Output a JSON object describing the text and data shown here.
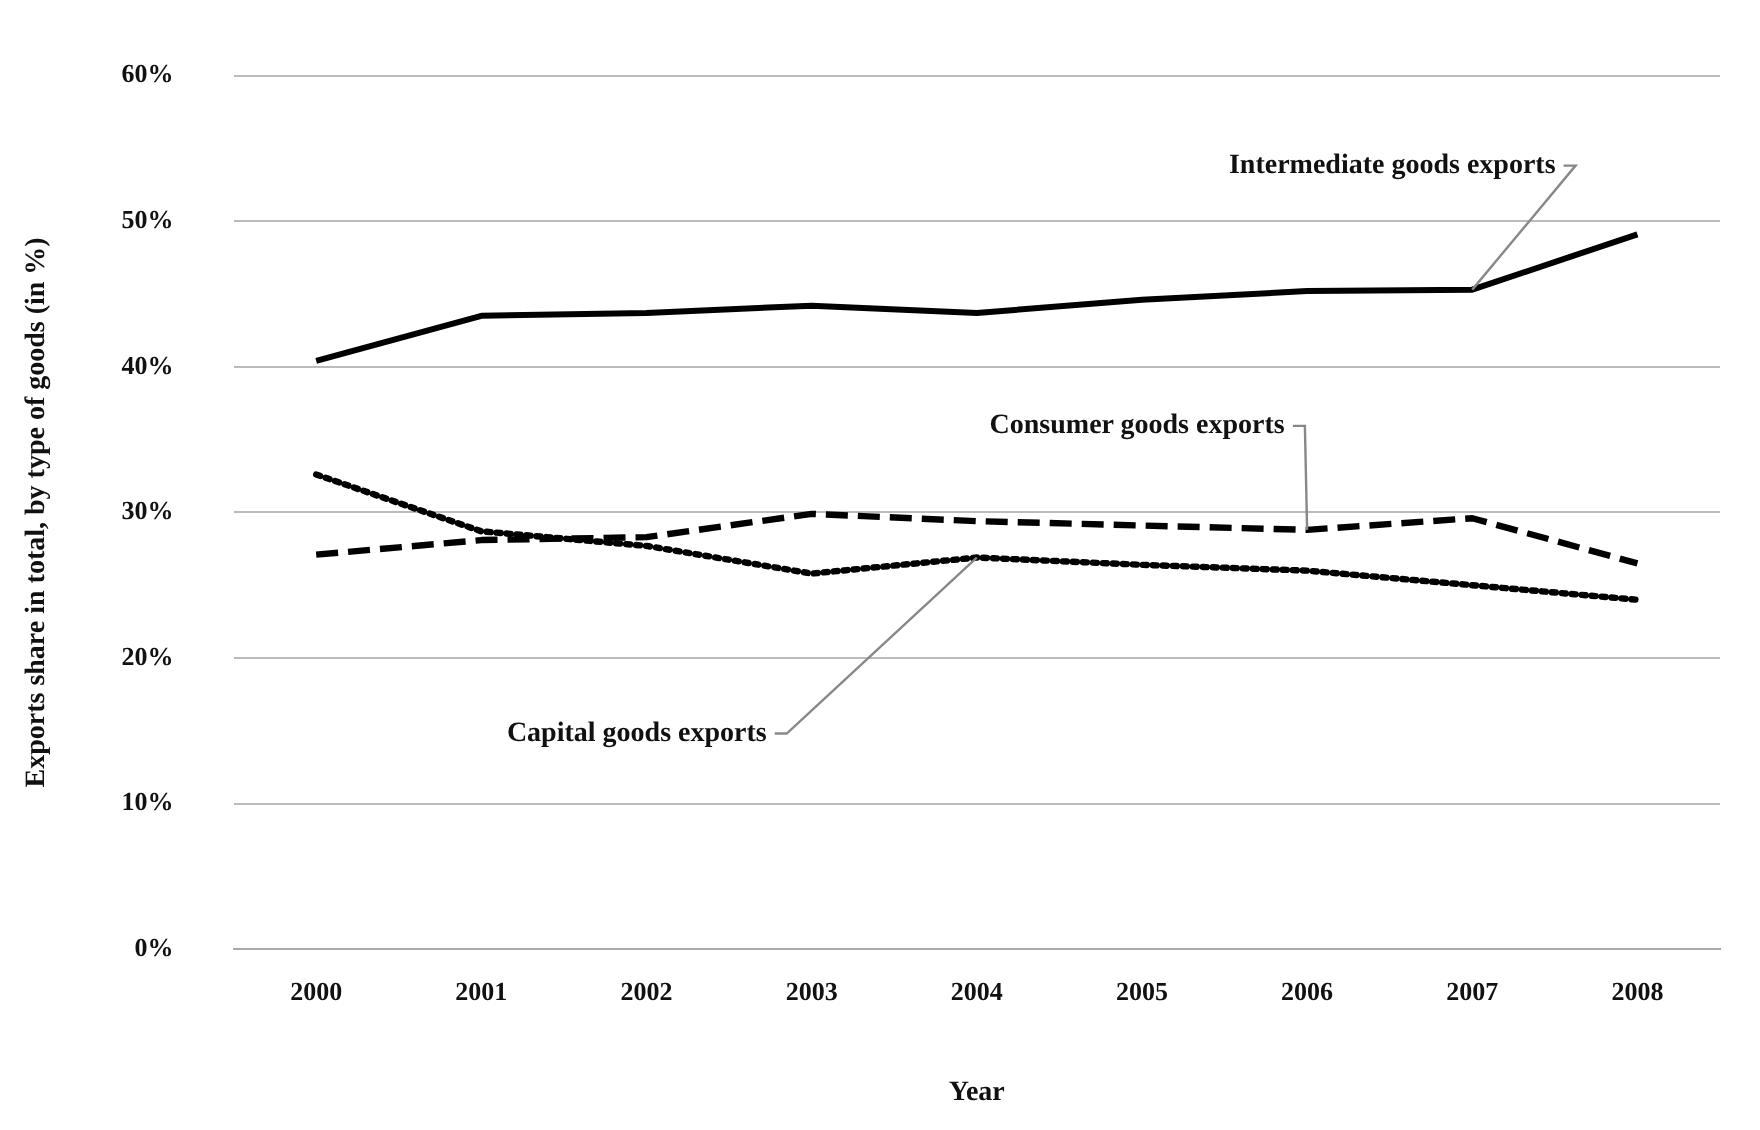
{
  "chart_data": {
    "type": "line",
    "xlabel": "Year",
    "ylabel": "Exports share in total, by type of goods (in %)",
    "categories": [
      "2000",
      "2001",
      "2002",
      "2003",
      "2004",
      "2005",
      "2006",
      "2007",
      "2008"
    ],
    "series": [
      {
        "color": "#000000",
        "line_style": "solid",
        "values": [
          40.4,
          43.5,
          43.7,
          44.2,
          43.7,
          44.6,
          45.2,
          45.3,
          49.1
        ]
      },
      {
        "color": "#000000",
        "line_style": "dashed",
        "values": [
          27.1,
          28.1,
          28.3,
          29.9,
          29.4,
          29.1,
          28.8,
          29.6,
          26.5
        ]
      },
      {
        "color": "#000000",
        "line_style": "dotted",
        "values": [
          32.6,
          28.7,
          27.7,
          25.8,
          26.9,
          26.4,
          26.0,
          25.0,
          24.0
        ]
      }
    ],
    "ylim": [
      0,
      60
    ],
    "yticks": [
      {
        "value": 0,
        "label": "0%"
      },
      {
        "value": 10,
        "label": "10%"
      },
      {
        "value": 20,
        "label": "20%"
      },
      {
        "value": 30,
        "label": "30%"
      },
      {
        "value": 40,
        "label": "40%"
      },
      {
        "value": 50,
        "label": "50%"
      },
      {
        "value": 60,
        "label": "60%"
      }
    ],
    "grid": "y",
    "legend": false,
    "marker": "none",
    "annotations": [
      {
        "text": "Intermediate goods exports",
        "x": "2007",
        "y": 45.3
      },
      {
        "text": "Consumer goods exports",
        "x": "2006",
        "y": 28.8
      },
      {
        "text": "Capital goods exports",
        "x": "2004",
        "y": 26.9
      }
    ]
  }
}
